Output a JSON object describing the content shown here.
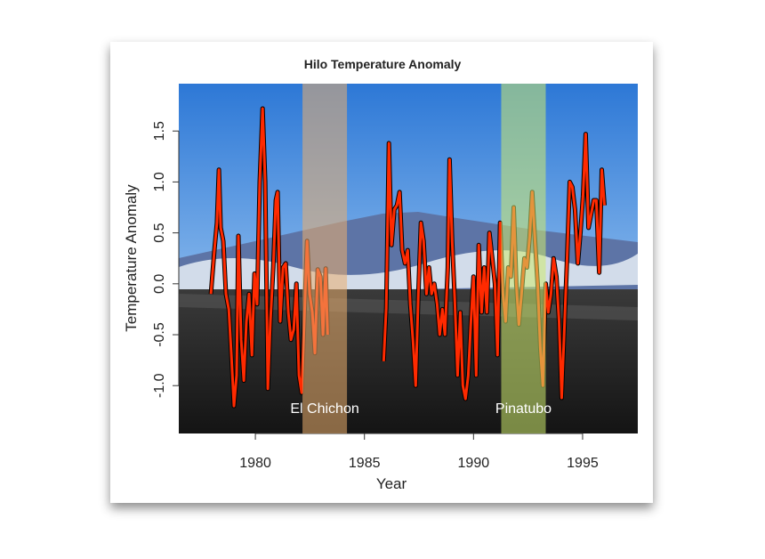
{
  "chart_data": {
    "type": "line",
    "title": "Hilo Temperature Anomaly",
    "xlabel": "Year",
    "ylabel": "Temperature Anomaly",
    "xlim": [
      1976.49,
      1997.53
    ],
    "ylim": [
      -1.47,
      1.965
    ],
    "xticks": [
      1980,
      1985,
      1990,
      1995
    ],
    "yticks": [
      {
        "value": -1,
        "label": "-1.0"
      },
      -0.5,
      {
        "value": 0,
        "label": "0.0"
      },
      0.5,
      {
        "value": 1,
        "label": "1.0"
      },
      1.5
    ],
    "bands": [
      {
        "label": "El Chichon",
        "start": 1982.16,
        "end": 1984.2,
        "color": "rgba(235,175,110,0.55)"
      },
      {
        "label": "Pinatubo",
        "start": 1991.27,
        "end": 1993.31,
        "color": "rgba(205,235,110,0.55)"
      }
    ],
    "series": [
      {
        "color": "#ff2a00",
        "x": [
          1977.96,
          1978.12,
          1978.24,
          1978.33,
          1978.41,
          1978.53,
          1978.65,
          1978.78,
          1978.9,
          1979.02,
          1979.14,
          1979.22,
          1979.35,
          1979.47,
          1979.59,
          1979.71,
          1979.84,
          1979.96,
          1980.08,
          1980.2,
          1980.33,
          1980.45,
          1980.57,
          1980.69,
          1980.82,
          1980.94,
          1981.02,
          1981.14,
          1981.27,
          1981.39,
          1981.51,
          1981.63,
          1981.76,
          1981.88,
          1982.0,
          1982.12,
          1982.24,
          1982.37,
          1982.49,
          1982.61,
          1982.73,
          1982.86,
          1982.98,
          1983.1,
          1983.22,
          1983.31,
          null,
          1985.88,
          1986.0,
          1986.12,
          1986.24,
          1986.37,
          1986.49,
          1986.61,
          1986.73,
          1986.86,
          1986.98,
          1987.1,
          1987.22,
          1987.35,
          1987.47,
          1987.59,
          1987.71,
          1987.84,
          1987.96,
          1988.08,
          1988.2,
          1988.33,
          1988.45,
          1988.57,
          1988.69,
          1988.82,
          1988.9,
          1989.02,
          1989.14,
          1989.27,
          1989.39,
          1989.51,
          1989.63,
          1989.76,
          1989.88,
          1990.0,
          1990.12,
          1990.24,
          1990.37,
          1990.49,
          1990.61,
          1990.73,
          1990.86,
          1990.98,
          1991.1,
          1991.22,
          1991.35,
          1991.47,
          1991.59,
          1991.71,
          1991.84,
          1991.96,
          1992.08,
          1992.2,
          1992.33,
          1992.45,
          1992.57,
          1992.69,
          1992.82,
          1992.94,
          1993.06,
          1993.18,
          1993.31,
          1993.43,
          1993.55,
          1993.67,
          1993.8,
          1993.92,
          1994.04,
          1994.16,
          1994.29,
          1994.41,
          1994.53,
          1994.65,
          1994.78,
          1994.9,
          1995.02,
          1995.14,
          1995.27,
          1995.39,
          1995.51,
          1995.63,
          1995.76,
          1995.88,
          1996.0
        ],
        "values": [
          -0.1,
          0.33,
          0.6,
          1.12,
          0.55,
          0.42,
          -0.1,
          -0.25,
          -0.7,
          -1.2,
          -0.9,
          0.47,
          -0.55,
          -0.95,
          -0.37,
          -0.1,
          -0.7,
          0.1,
          -0.2,
          1.0,
          1.72,
          1.0,
          -1.03,
          -0.37,
          0.16,
          0.82,
          0.9,
          -0.37,
          0.16,
          0.2,
          -0.28,
          -0.55,
          -0.45,
          0,
          -0.9,
          -1.07,
          -0.37,
          0.42,
          -0.1,
          -0.28,
          -0.68,
          0.14,
          0.07,
          -0.5,
          0.15,
          -0.5,
          null,
          -0.76,
          -0.24,
          1.38,
          0.38,
          0.73,
          0.77,
          0.9,
          0.33,
          0.2,
          0.33,
          -0.2,
          -0.55,
          -1.0,
          -0.1,
          0.6,
          0.42,
          -0.1,
          0.16,
          -0.1,
          0,
          -0.2,
          -0.5,
          -0.25,
          -0.5,
          0.16,
          1.22,
          0.42,
          -0.15,
          -0.9,
          -0.28,
          -1.0,
          -1.13,
          -0.9,
          -0.37,
          0.07,
          -0.9,
          0.38,
          -0.28,
          0.16,
          -0.28,
          0.5,
          0.25,
          0,
          -0.7,
          0.6,
          -0.1,
          -0.37,
          0.16,
          0.07,
          0.75,
          0,
          -0.4,
          -0.1,
          0.25,
          0.16,
          0.46,
          0.9,
          0.42,
          0,
          -0.63,
          -1.0,
          0,
          -0.28,
          -0.1,
          0.25,
          0.07,
          -0.37,
          -1.12,
          -0.45,
          0.25,
          1.0,
          0.95,
          0.73,
          0.2,
          0.5,
          0.86,
          1.47,
          0.55,
          0.68,
          0.82,
          0.82,
          0.11,
          1.12,
          0.77
        ]
      }
    ]
  }
}
